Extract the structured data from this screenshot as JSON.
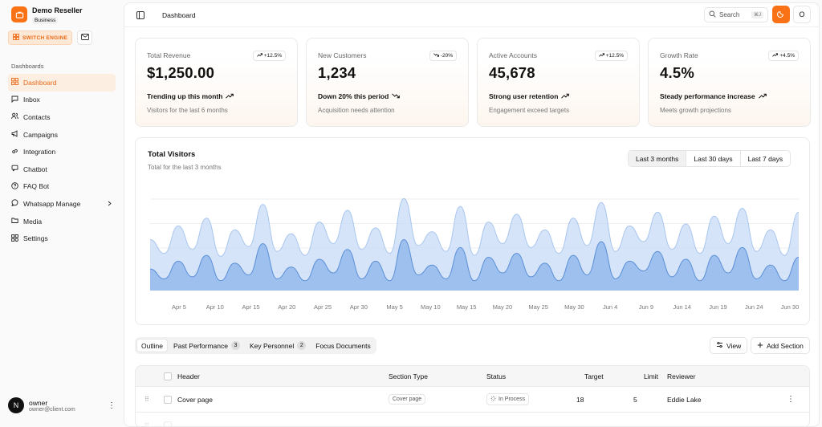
{
  "brand": {
    "name": "Demo Reseller",
    "plan": "Business"
  },
  "switch_engine_label": "SWITCH ENGINE",
  "sidebar": {
    "group_label": "Dashboards",
    "items": [
      {
        "label": "Dashboard",
        "icon": "grid-icon",
        "active": true
      },
      {
        "label": "Inbox",
        "icon": "message-icon"
      },
      {
        "label": "Contacts",
        "icon": "users-icon"
      },
      {
        "label": "Campaigns",
        "icon": "megaphone-icon"
      },
      {
        "label": "Integration",
        "icon": "link-icon"
      },
      {
        "label": "Chatbot",
        "icon": "chat-icon"
      },
      {
        "label": "FAQ Bot",
        "icon": "help-icon"
      },
      {
        "label": "Whatsapp Manage",
        "icon": "whatsapp-icon",
        "has_children": true
      },
      {
        "label": "Media",
        "icon": "folder-icon"
      },
      {
        "label": "Settings",
        "icon": "settings-icon"
      }
    ]
  },
  "user": {
    "initial": "N",
    "name": "owner",
    "email": "owner@client.com"
  },
  "header": {
    "title": "Dashboard",
    "search_label": "Search",
    "search_shortcut": "⌘J",
    "profile_initial": "O"
  },
  "stats": [
    {
      "label": "Total Revenue",
      "value": "$1,250.00",
      "badge": "+12.5%",
      "trend": "Trending up this month",
      "sub": "Visitors for the last 6 months",
      "direction": "up"
    },
    {
      "label": "New Customers",
      "value": "1,234",
      "badge": "-20%",
      "trend": "Down 20% this period",
      "sub": "Acquisition needs attention",
      "direction": "down"
    },
    {
      "label": "Active Accounts",
      "value": "45,678",
      "badge": "+12.5%",
      "trend": "Strong user retention",
      "sub": "Engagement exceed targets",
      "direction": "up"
    },
    {
      "label": "Growth Rate",
      "value": "4.5%",
      "badge": "+4.5%",
      "trend": "Steady performance increase",
      "sub": "Meets growth projections",
      "direction": "up"
    }
  ],
  "visitors": {
    "title": "Total Visitors",
    "subtitle": "Total for the last 3 months",
    "ranges": [
      "Last 3 months",
      "Last 30 days",
      "Last 7 days"
    ],
    "selected_range": "Last 3 months"
  },
  "chart_data": {
    "type": "area",
    "x_ticks": [
      "Apr 5",
      "Apr 10",
      "Apr 15",
      "Apr 20",
      "Apr 25",
      "Apr 30",
      "May 5",
      "May 10",
      "May 15",
      "May 20",
      "May 25",
      "May 30",
      "Jun 4",
      "Jun 9",
      "Jun 14",
      "Jun 19",
      "Jun 24",
      "Jun 30"
    ],
    "grid": "horizontal",
    "series": [
      {
        "color": "#c7dbf6",
        "values": [
          0.52,
          0.38,
          0.66,
          0.42,
          0.74,
          0.35,
          0.62,
          0.45,
          0.88,
          0.4,
          0.58,
          0.36,
          0.7,
          0.48,
          0.82,
          0.42,
          0.64,
          0.38,
          0.94,
          0.46,
          0.6,
          0.4,
          0.86,
          0.36,
          0.7,
          0.48,
          0.78,
          0.44,
          0.62,
          0.38,
          0.74,
          0.46,
          0.9,
          0.4,
          0.66,
          0.5,
          0.8,
          0.42,
          0.68,
          0.38,
          0.76,
          0.48,
          0.84,
          0.4,
          0.62,
          0.36,
          0.8
        ]
      },
      {
        "color": "#8fb6ec",
        "values": [
          0.22,
          0.12,
          0.3,
          0.14,
          0.36,
          0.1,
          0.28,
          0.16,
          0.48,
          0.12,
          0.24,
          0.1,
          0.32,
          0.18,
          0.42,
          0.12,
          0.3,
          0.1,
          0.52,
          0.16,
          0.26,
          0.12,
          0.44,
          0.1,
          0.34,
          0.18,
          0.38,
          0.14,
          0.28,
          0.1,
          0.36,
          0.16,
          0.5,
          0.12,
          0.3,
          0.2,
          0.4,
          0.14,
          0.32,
          0.1,
          0.36,
          0.18,
          0.44,
          0.12,
          0.26,
          0.1,
          0.34
        ]
      }
    ]
  },
  "tabs": [
    {
      "label": "Outline",
      "active": true
    },
    {
      "label": "Past Performance",
      "count": "3"
    },
    {
      "label": "Key Personnel",
      "count": "2"
    },
    {
      "label": "Focus Documents"
    }
  ],
  "actions": {
    "view": "View",
    "add_section": "Add Section"
  },
  "table": {
    "headers": [
      "Header",
      "Section Type",
      "Status",
      "Target",
      "Limit",
      "Reviewer"
    ],
    "rows": [
      {
        "header": "Cover page",
        "type": "Cover page",
        "status": "In Process",
        "target": "18",
        "limit": "5",
        "reviewer": "Eddie Lake"
      }
    ]
  }
}
